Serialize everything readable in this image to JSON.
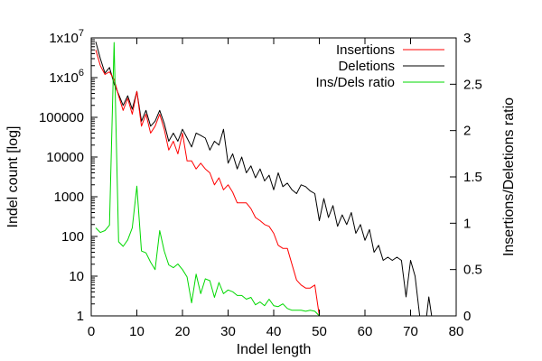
{
  "chart_data": {
    "type": "line",
    "xlabel": "Indel length",
    "ylabel": "Indel count [log]",
    "y2label": "Insertions/Deletions ratio",
    "xlim": [
      0,
      80
    ],
    "ylim": [
      1,
      10000000
    ],
    "y_scale": "log",
    "y2lim": [
      0,
      3
    ],
    "x_ticks": [
      "0",
      "10",
      "20",
      "30",
      "40",
      "50",
      "60",
      "70",
      "80"
    ],
    "y_ticks": [
      {
        "value": 1,
        "label": "1"
      },
      {
        "value": 10,
        "label": "10"
      },
      {
        "value": 100,
        "label": "100"
      },
      {
        "value": 1000,
        "label": "1000"
      },
      {
        "value": 10000,
        "label": "10000"
      },
      {
        "value": 100000,
        "label": "100000"
      },
      {
        "value": 1000000,
        "base": "1x10",
        "exp": "6"
      },
      {
        "value": 10000000,
        "base": "1x10",
        "exp": "7"
      }
    ],
    "y2_ticks": [
      "0",
      "0.5",
      "1",
      "1.5",
      "2",
      "2.5",
      "3"
    ],
    "legend_position": "top-right",
    "grid": false,
    "series": [
      {
        "name": "Insertions",
        "axis": "left",
        "color": "#ff0000",
        "x": [
          1,
          2,
          3,
          4,
          5,
          6,
          7,
          8,
          9,
          10,
          11,
          12,
          13,
          14,
          15,
          16,
          17,
          18,
          19,
          20,
          21,
          22,
          23,
          24,
          25,
          26,
          27,
          28,
          29,
          30,
          31,
          32,
          33,
          34,
          35,
          36,
          37,
          38,
          39,
          40,
          41,
          42,
          43,
          44,
          45,
          46,
          47,
          48,
          49,
          50
        ],
        "y": [
          5000000,
          2000000,
          1200000,
          1400000,
          900000,
          350000,
          150000,
          300000,
          120000,
          450000,
          60000,
          120000,
          40000,
          60000,
          120000,
          50000,
          15000,
          25000,
          12000,
          40000,
          8000,
          8000,
          5000,
          7000,
          5000,
          4000,
          2000,
          3000,
          1500,
          2000,
          1300,
          700,
          700,
          700,
          500,
          300,
          250,
          200,
          180,
          120,
          60,
          50,
          50,
          20,
          8,
          6,
          5,
          5,
          6,
          1
        ],
        "y_ratio": []
      },
      {
        "name": "Deletions",
        "axis": "left",
        "color": "#000000",
        "x": [
          1,
          2,
          3,
          4,
          5,
          6,
          7,
          8,
          9,
          10,
          11,
          12,
          13,
          14,
          15,
          16,
          17,
          18,
          19,
          20,
          21,
          22,
          23,
          24,
          25,
          26,
          27,
          28,
          29,
          30,
          31,
          32,
          33,
          34,
          35,
          36,
          37,
          38,
          39,
          40,
          41,
          42,
          43,
          44,
          45,
          46,
          47,
          48,
          49,
          50,
          51,
          52,
          53,
          54,
          55,
          56,
          57,
          58,
          59,
          60,
          61,
          62,
          63,
          64,
          65,
          66,
          67,
          68,
          69,
          70,
          71,
          72,
          73,
          74,
          75
        ],
        "y": [
          8000000,
          3000000,
          1300000,
          1800000,
          700000,
          380000,
          200000,
          350000,
          160000,
          450000,
          80000,
          150000,
          60000,
          80000,
          150000,
          70000,
          25000,
          40000,
          25000,
          50000,
          30000,
          18000,
          40000,
          35000,
          30000,
          15000,
          25000,
          20000,
          50000,
          7000,
          12000,
          5000,
          10000,
          4000,
          6000,
          3000,
          5000,
          2500,
          3500,
          1500,
          4000,
          1800,
          2200,
          1500,
          1200,
          2000,
          1800,
          1400,
          1200,
          250,
          900,
          300,
          600,
          180,
          350,
          200,
          400,
          120,
          200,
          80,
          150,
          40,
          60,
          25,
          30,
          25,
          30,
          25,
          3,
          25,
          10,
          1,
          0.3,
          3,
          0.5
        ]
      },
      {
        "name": "Ins/Dels ratio",
        "axis": "right",
        "color": "#00d800",
        "x": [
          1,
          2,
          3,
          4,
          5,
          6,
          7,
          8,
          9,
          10,
          11,
          12,
          13,
          14,
          15,
          16,
          17,
          18,
          19,
          20,
          21,
          22,
          23,
          24,
          25,
          26,
          27,
          28,
          29,
          30,
          31,
          32,
          33,
          34,
          35,
          36,
          37,
          38,
          39,
          40,
          41,
          42,
          43,
          44,
          45,
          46,
          47,
          48,
          49,
          50
        ],
        "y": [
          0.95,
          0.9,
          0.92,
          0.98,
          2.95,
          0.8,
          0.75,
          0.82,
          0.95,
          1.4,
          0.7,
          0.68,
          0.58,
          0.5,
          0.92,
          0.7,
          0.55,
          0.52,
          0.56,
          0.5,
          0.42,
          0.14,
          0.45,
          0.24,
          0.4,
          0.38,
          0.2,
          0.36,
          0.24,
          0.28,
          0.26,
          0.22,
          0.22,
          0.18,
          0.2,
          0.12,
          0.15,
          0.11,
          0.18,
          0.11,
          0.1,
          0.13,
          0.08,
          0.06,
          0.06,
          0.06,
          0.05,
          0.06,
          0.05,
          0.0
        ]
      }
    ]
  }
}
